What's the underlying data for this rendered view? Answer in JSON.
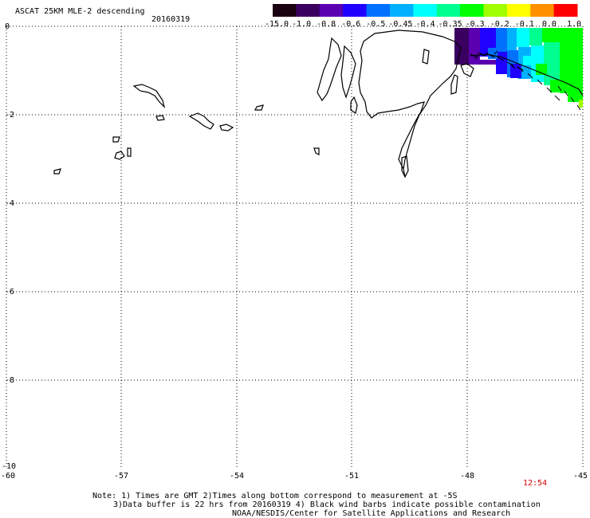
{
  "header": {
    "title": "ASCAT 25KM MLE-2 descending",
    "date": "20160319"
  },
  "colorbar": {
    "labels": [
      "-15.0",
      "-1.0",
      "-0.8",
      "-0.6",
      "-0.5",
      "-0.45",
      "-0.4",
      "-0.35",
      "-0.3",
      "-0.2",
      "-0.1",
      "0.0",
      "1.0"
    ],
    "colors": [
      "#1a0010",
      "#3a0060",
      "#5a00b0",
      "#2000ff",
      "#0070ff",
      "#00b0ff",
      "#00ffff",
      "#00ff90",
      "#00ff00",
      "#a0ff00",
      "#ffff00",
      "#ff9000",
      "#ff0000"
    ]
  },
  "axes": {
    "x_ticks": [
      "-60",
      "-57",
      "-54",
      "-51",
      "-48",
      "-45"
    ],
    "y_ticks": [
      "0",
      "-2",
      "-4",
      "-6",
      "-8",
      "-10"
    ]
  },
  "timestamp": "12:54",
  "notes": {
    "line1": "Note: 1) Times are GMT 2)Times along bottom correspond to measurement at -5S",
    "line2": "3)Data buffer is 22 hrs from 20160319 4) Black wind barbs indicate possible contamination",
    "line3": "NOAA/NESDIS/Center for Satellite Applications and Research"
  },
  "colors": {
    "timestamp": "#dd0000",
    "grid": "#000000"
  }
}
